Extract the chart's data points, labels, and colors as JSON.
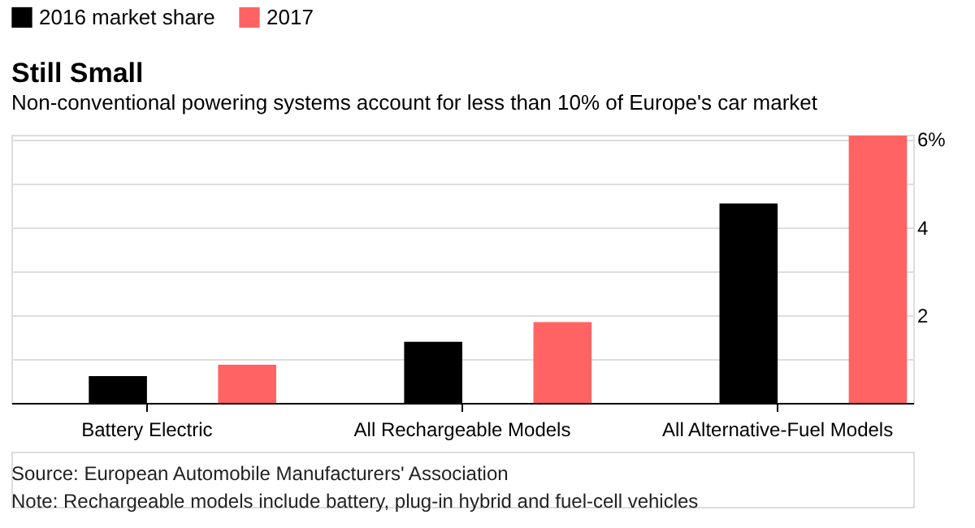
{
  "chart_data": {
    "type": "bar",
    "title": "Still Small",
    "subtitle": "Non-conventional powering systems account for less than 10% of Europe's car market",
    "categories": [
      "Battery Electric",
      "All Rechargeable Models",
      "All Alternative-Fuel Models"
    ],
    "series": [
      {
        "name": "2016 market share",
        "color": "#000000",
        "values": [
          0.61,
          1.39,
          4.54
        ]
      },
      {
        "name": "2017",
        "color": "#ff6363",
        "values": [
          0.87,
          1.84,
          6.08
        ]
      }
    ],
    "ylim": [
      0,
      6.1
    ],
    "yticks": [
      {
        "value": 1,
        "label": null
      },
      2,
      {
        "value": 3,
        "label": null
      },
      4,
      {
        "value": 5,
        "label": null
      },
      {
        "value": 6,
        "label": "6%"
      }
    ],
    "grid": "y",
    "legend": "top left",
    "annotations": [
      "Source: European Automobile Manufacturers' Association",
      "Note: Rechargeable models include battery, plug-in hybrid and fuel-cell vehicles"
    ]
  }
}
